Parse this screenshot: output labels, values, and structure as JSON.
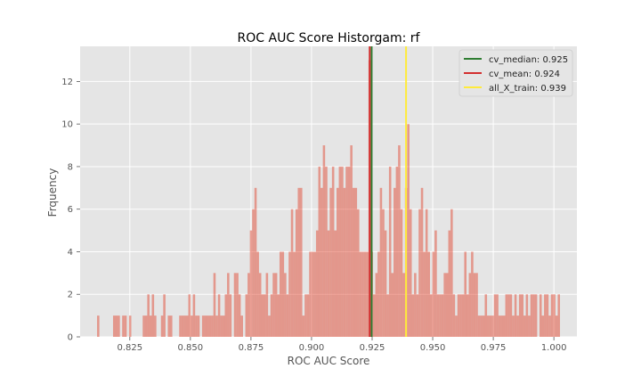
{
  "chart_data": {
    "type": "bar",
    "title": "ROC AUC Score Historgam: rf",
    "xlabel": "ROC AUC Score",
    "ylabel": "Frquency",
    "xlim": [
      0.8045,
      1.0095
    ],
    "ylim": [
      0,
      13.65
    ],
    "xticks": [
      0.825,
      0.85,
      0.875,
      0.9,
      0.925,
      0.95,
      0.975,
      1.0
    ],
    "xtick_labels": [
      "0.825",
      "0.850",
      "0.875",
      "0.900",
      "0.925",
      "0.950",
      "0.975",
      "1.000"
    ],
    "yticks": [
      0,
      2,
      4,
      6,
      8,
      10,
      12
    ],
    "ytick_labels": [
      "0",
      "2",
      "4",
      "6",
      "8",
      "10",
      "12"
    ],
    "grid": true,
    "legend_position": "top-right",
    "histogram": {
      "bin_start": 0.8115,
      "bin_width": 0.000941,
      "counts": [
        1,
        0,
        0,
        0,
        0,
        0,
        0,
        1,
        1,
        1,
        0,
        1,
        1,
        0,
        1,
        0,
        0,
        0,
        0,
        0,
        1,
        1,
        2,
        1,
        2,
        1,
        0,
        0,
        1,
        2,
        0,
        1,
        1,
        0,
        0,
        0,
        1,
        1,
        1,
        1,
        2,
        1,
        2,
        1,
        1,
        0,
        1,
        1,
        1,
        1,
        1,
        3,
        1,
        2,
        1,
        1,
        2,
        3,
        2,
        0,
        3,
        3,
        2,
        1,
        0,
        2,
        3,
        5,
        6,
        7,
        4,
        3,
        2,
        2,
        3,
        1,
        2,
        3,
        3,
        2,
        4,
        4,
        3,
        2,
        4,
        6,
        4,
        6,
        7,
        7,
        1,
        2,
        2,
        4,
        4,
        4,
        5,
        8,
        7,
        9,
        8,
        5,
        7,
        8,
        5,
        7,
        8,
        8,
        7,
        8,
        8,
        9,
        7,
        7,
        6,
        4,
        4,
        4,
        4,
        13,
        4,
        2,
        3,
        4,
        7,
        6,
        5,
        2,
        8,
        3,
        7,
        8,
        9,
        6,
        3,
        7,
        10,
        6,
        2,
        3,
        2,
        6,
        7,
        4,
        6,
        4,
        2,
        4,
        5,
        2,
        2,
        2,
        3,
        3,
        5,
        6,
        2,
        1,
        2,
        2,
        2,
        4,
        2,
        3,
        4,
        3,
        3,
        1,
        1,
        1,
        2,
        1,
        1,
        1,
        2,
        2,
        1,
        1,
        1,
        2,
        2,
        2,
        1,
        2,
        1,
        2,
        2,
        1,
        2,
        1,
        2,
        2,
        2,
        0,
        2,
        1,
        2,
        2,
        1,
        2,
        2,
        1,
        2
      ],
      "color": "#E24A33",
      "alpha": 0.5
    },
    "lines": [
      {
        "name": "cv_median: 0.925",
        "x": 0.9248,
        "color": "#2E7D32"
      },
      {
        "name": "cv_mean: 0.924",
        "x": 0.924,
        "color": "#D32F2F"
      },
      {
        "name": "all_X_train: 0.939",
        "x": 0.939,
        "color": "#FFEB3B"
      }
    ]
  }
}
